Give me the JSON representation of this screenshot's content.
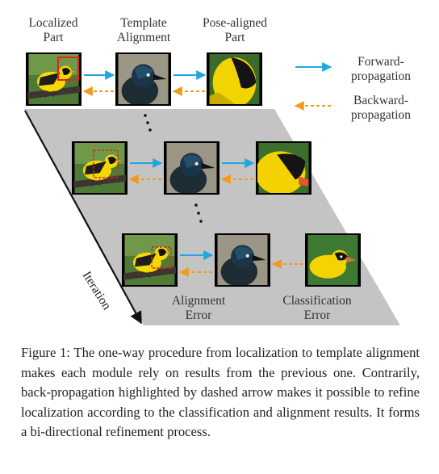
{
  "headers": {
    "localized_part": "Localized\nPart",
    "template_alignment": "Template\nAlignment",
    "pose_aligned_part": "Pose-aligned\nPart"
  },
  "legend": {
    "forward": "Forward-\npropagation",
    "backward": "Backward-\npropagation",
    "forward_color": "#1fa7e0",
    "backward_color": "#f39a1e"
  },
  "axis_label": "Iteration",
  "bottom_labels": {
    "alignment_error": "Alignment\nError",
    "classification_error": "Classification\nError"
  },
  "caption": "Figure 1: The one-way procedure from localization to template alignment makes each module rely on results from the previous one. Contrarily, back-propagation highlighted by dashed arrow makes it possible to refine localization according to the classification and alignment results. It forms a bi-directional refinement process."
}
